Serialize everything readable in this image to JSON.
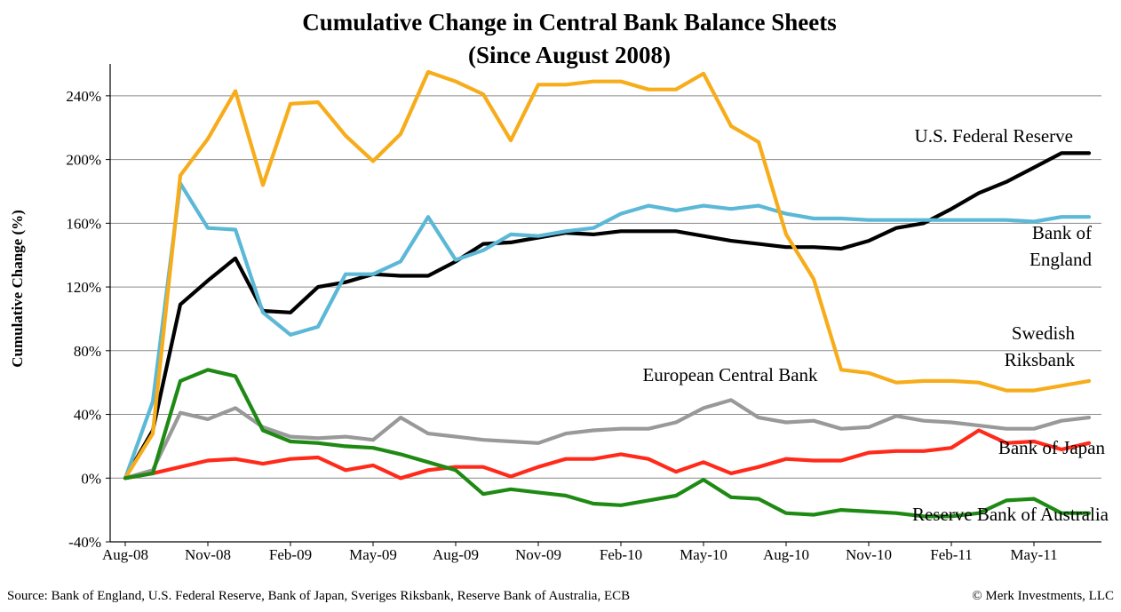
{
  "chart_data": {
    "type": "line",
    "title": "Cumulative Change in Central Bank Balance Sheets",
    "subtitle": "(Since August 2008)",
    "ylabel": "Cumulative Change (%)",
    "xlabel": "",
    "ylim": [
      -40,
      260
    ],
    "yticks": [
      -40,
      0,
      40,
      80,
      120,
      160,
      200,
      240
    ],
    "ytick_labels": [
      "-40%",
      "0%",
      "40%",
      "80%",
      "120%",
      "160%",
      "200%",
      "240%"
    ],
    "x_tick_labels": [
      "Aug-08",
      "Nov-08",
      "Feb-09",
      "May-09",
      "Aug-09",
      "Nov-09",
      "Feb-10",
      "May-10",
      "Aug-10",
      "Nov-10",
      "Feb-11",
      "May-11"
    ],
    "x_tick_months": [
      0,
      3,
      6,
      9,
      12,
      15,
      18,
      21,
      24,
      27,
      30,
      33
    ],
    "x_months": [
      0,
      1,
      2,
      3,
      4,
      5,
      6,
      7,
      8,
      9,
      10,
      11,
      12,
      13,
      14,
      15,
      16,
      17,
      18,
      19,
      20,
      21,
      22,
      23,
      24,
      25,
      26,
      27,
      28,
      29,
      30,
      31,
      32,
      33,
      34,
      35
    ],
    "grid": true,
    "series": [
      {
        "name": "U.S. Federal Reserve",
        "color": "#000000",
        "values": [
          0,
          30,
          109,
          124,
          138,
          105,
          104,
          120,
          123,
          128,
          127,
          127,
          136,
          147,
          148,
          151,
          154,
          153,
          155,
          155,
          155,
          152,
          149,
          147,
          145,
          145,
          144,
          149,
          157,
          160,
          169,
          179,
          186,
          195,
          204,
          204
        ]
      },
      {
        "name": "Bank of England",
        "color": "#5bb8d6",
        "values": [
          0,
          48,
          185,
          157,
          156,
          104,
          90,
          95,
          128,
          128,
          136,
          164,
          137,
          143,
          153,
          152,
          155,
          157,
          166,
          171,
          168,
          171,
          169,
          171,
          166,
          163,
          163,
          162,
          162,
          162,
          162,
          162,
          162,
          161,
          164,
          164
        ]
      },
      {
        "name": "Swedish Riksbank",
        "color": "#f7ac1a",
        "values": [
          0,
          28,
          190,
          213,
          243,
          184,
          235,
          236,
          215,
          199,
          216,
          255,
          249,
          241,
          212,
          247,
          247,
          249,
          249,
          244,
          244,
          254,
          221,
          211,
          153,
          125,
          68,
          66,
          60,
          61,
          61,
          60,
          55,
          55,
          58,
          61
        ]
      },
      {
        "name": "European Central Bank",
        "color": "#999999",
        "values": [
          0,
          5,
          41,
          37,
          44,
          32,
          26,
          25,
          26,
          24,
          38,
          28,
          26,
          24,
          23,
          22,
          28,
          30,
          31,
          31,
          35,
          44,
          49,
          38,
          35,
          36,
          31,
          32,
          39,
          36,
          35,
          33,
          31,
          31,
          36,
          38
        ]
      },
      {
        "name": "Bank of Japan",
        "color": "#ff2a1a",
        "values": [
          0,
          3,
          7,
          11,
          12,
          9,
          12,
          13,
          5,
          8,
          0,
          5,
          7,
          7,
          1,
          7,
          12,
          12,
          15,
          12,
          4,
          10,
          3,
          7,
          12,
          11,
          11,
          16,
          17,
          17,
          19,
          30,
          22,
          23,
          18,
          22
        ]
      },
      {
        "name": "Reserve Bank of Australia",
        "color": "#1e8a14",
        "values": [
          0,
          3,
          61,
          68,
          64,
          30,
          23,
          22,
          20,
          19,
          15,
          10,
          5,
          -10,
          -7,
          -9,
          -11,
          -16,
          -17,
          -14,
          -11,
          -1,
          -12,
          -13,
          -22,
          -23,
          -20,
          -21,
          -22,
          -24,
          -24,
          -22,
          -14,
          -13,
          -22,
          -22
        ]
      }
    ],
    "series_labels": [
      {
        "text": "U.S. Federal Reserve",
        "lines": [
          "U.S. Federal Reserve"
        ]
      },
      {
        "text": "Bank of England",
        "lines": [
          "Bank of",
          "England"
        ]
      },
      {
        "text": "Swedish Riksbank",
        "lines": [
          "Swedish",
          "Riksbank"
        ]
      },
      {
        "text": "European Central Bank",
        "lines": [
          "European Central Bank"
        ]
      },
      {
        "text": "Bank of Japan",
        "lines": [
          "Bank of Japan"
        ]
      },
      {
        "text": "Reserve Bank of Australia",
        "lines": [
          "Reserve Bank of Australia"
        ]
      }
    ]
  },
  "footer": {
    "source": "Source: Bank of England, U.S. Federal Reserve, Bank of Japan, Sveriges Riksbank, Reserve Bank of Australia, ECB",
    "copyright": "© Merk Investments, LLC"
  }
}
